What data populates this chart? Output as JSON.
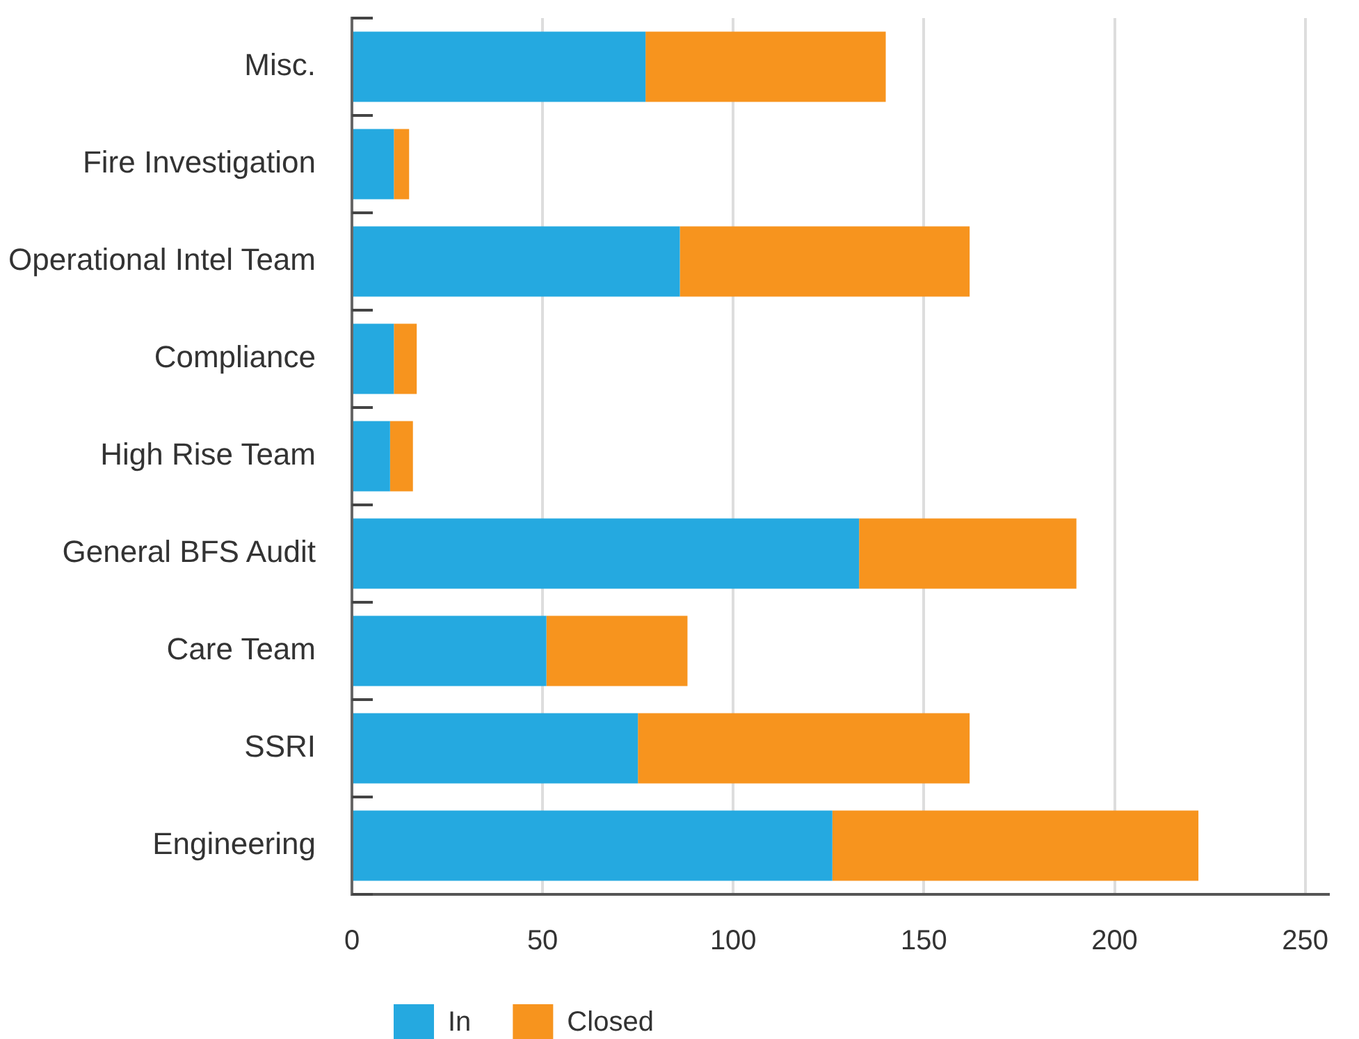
{
  "chart_data": {
    "type": "bar",
    "orientation": "horizontal",
    "stacked": true,
    "categories": [
      "Misc.",
      "Fire Investigation",
      "Operational Intel Team",
      "Compliance",
      "High Rise Team",
      "General BFS Audit",
      "Care Team",
      "SSRI",
      "Engineering"
    ],
    "series": [
      {
        "name": "In",
        "color": "#25a9e0",
        "values": [
          77,
          11,
          86,
          11,
          10,
          133,
          51,
          75,
          126
        ]
      },
      {
        "name": "Closed",
        "color": "#f7941e",
        "values": [
          63,
          4,
          76,
          6,
          6,
          57,
          37,
          87,
          96
        ]
      }
    ],
    "xlim": [
      0,
      256
    ],
    "xticks": [
      0,
      50,
      100,
      150,
      200,
      250
    ],
    "grid": "x",
    "legend": "bottom left"
  }
}
